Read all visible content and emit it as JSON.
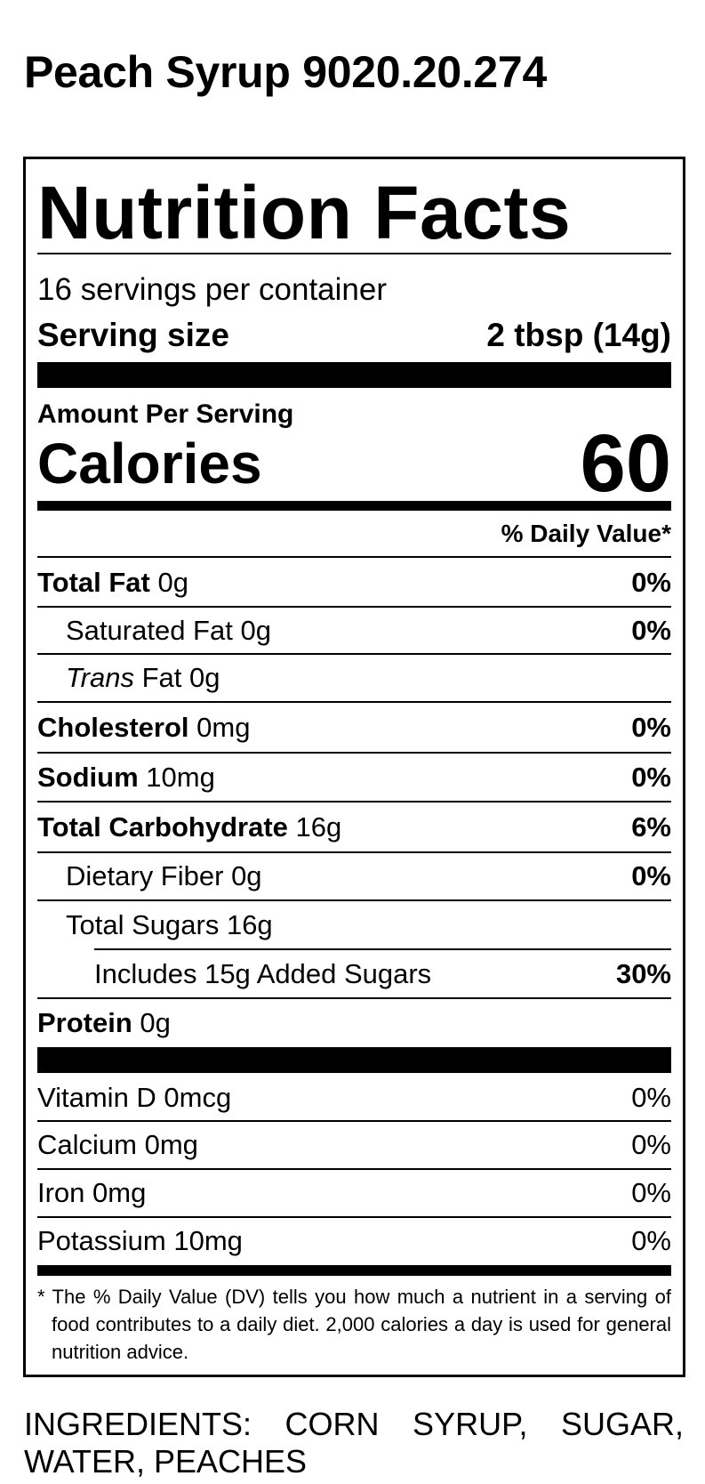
{
  "title": "Peach Syrup 9020.20.274",
  "label": {
    "heading": "Nutrition Facts",
    "servings": "16 servings per container",
    "serving_size_label": "Serving size",
    "serving_size_value": "2 tbsp (14g)",
    "amount_per_serving": "Amount Per Serving",
    "calories_label": "Calories",
    "calories_value": "60",
    "dv_header": "% Daily Value*",
    "nutrients": [
      {
        "name": "Total Fat",
        "amount": "0g",
        "dv": "0%"
      },
      {
        "name": "Saturated Fat",
        "amount": "0g",
        "dv": "0%"
      },
      {
        "name": "Trans",
        "name2": "Fat",
        "amount": "0g",
        "dv": ""
      },
      {
        "name": "Cholesterol",
        "amount": "0mg",
        "dv": "0%"
      },
      {
        "name": "Sodium",
        "amount": "10mg",
        "dv": "0%"
      },
      {
        "name": "Total Carbohydrate",
        "amount": "16g",
        "dv": "6%"
      },
      {
        "name": "Dietary Fiber",
        "amount": "0g",
        "dv": "0%"
      },
      {
        "name": "Total Sugars",
        "amount": "16g",
        "dv": ""
      },
      {
        "name": "Includes 15g Added Sugars",
        "dv": "30%"
      },
      {
        "name": "Protein",
        "amount": "0g"
      }
    ],
    "vitamins": [
      {
        "name": "Vitamin D 0mcg",
        "dv": "0%"
      },
      {
        "name": "Calcium 0mg",
        "dv": "0%"
      },
      {
        "name": "Iron 0mg",
        "dv": "0%"
      },
      {
        "name": "Potassium 10mg",
        "dv": "0%"
      }
    ],
    "footnote": "* The % Daily Value (DV) tells you how much a nutrient in a serving of food contributes to a daily diet. 2,000 calories a day is used for general nutrition advice."
  },
  "ingredients": "INGREDIENTS: CORN SYRUP, SUGAR, WATER, PEACHES"
}
